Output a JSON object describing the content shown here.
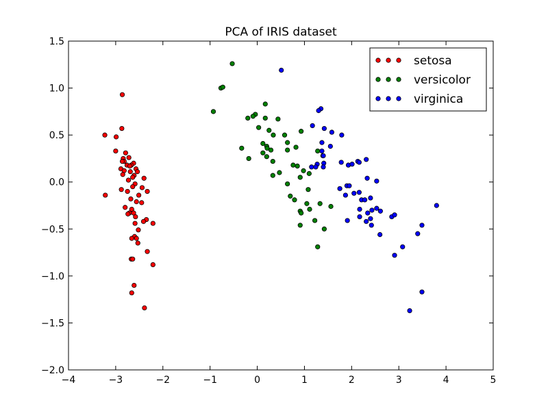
{
  "chart_data": {
    "type": "scatter",
    "title": "PCA of IRIS dataset",
    "xlabel": "",
    "ylabel": "",
    "xlim": [
      -4,
      5
    ],
    "ylim": [
      -2.0,
      1.5
    ],
    "xticks": [
      -4,
      -3,
      -2,
      -1,
      0,
      1,
      2,
      3,
      4,
      5
    ],
    "xtick_labels": [
      "−4",
      "−3",
      "−2",
      "−1",
      "0",
      "1",
      "2",
      "3",
      "4",
      "5"
    ],
    "yticks": [
      -2.0,
      -1.5,
      -1.0,
      -0.5,
      0.0,
      0.5,
      1.0,
      1.5
    ],
    "ytick_labels": [
      "−2.0",
      "−1.5",
      "−1.0",
      "−0.5",
      "0.0",
      "0.5",
      "1.0",
      "1.5"
    ],
    "grid": false,
    "legend_position": "top-right",
    "series": [
      {
        "name": "setosa",
        "color": "#ff0000",
        "points": [
          [
            -2.86,
            0.93
          ],
          [
            -3.23,
            0.5
          ],
          [
            -2.87,
            0.57
          ],
          [
            -2.99,
            0.48
          ],
          [
            -2.79,
            0.31
          ],
          [
            -3.0,
            0.33
          ],
          [
            -2.84,
            0.25
          ],
          [
            -2.72,
            0.26
          ],
          [
            -2.82,
            0.22
          ],
          [
            -2.86,
            0.22
          ],
          [
            -2.76,
            0.18
          ],
          [
            -2.62,
            0.2
          ],
          [
            -2.67,
            0.18
          ],
          [
            -2.7,
            0.17
          ],
          [
            -2.57,
            0.14
          ],
          [
            -2.89,
            0.14
          ],
          [
            -2.82,
            0.12
          ],
          [
            -2.69,
            0.11
          ],
          [
            -2.54,
            0.11
          ],
          [
            -2.85,
            0.08
          ],
          [
            -2.61,
            0.07
          ],
          [
            -2.64,
            0.05
          ],
          [
            -2.4,
            0.04
          ],
          [
            -2.73,
            0.02
          ],
          [
            -2.59,
            -0.02
          ],
          [
            -2.64,
            -0.05
          ],
          [
            -2.44,
            -0.06
          ],
          [
            -2.88,
            -0.08
          ],
          [
            -2.75,
            -0.1
          ],
          [
            -2.33,
            -0.1
          ],
          [
            -3.22,
            -0.14
          ],
          [
            -2.51,
            -0.14
          ],
          [
            -2.68,
            -0.18
          ],
          [
            -2.56,
            -0.21
          ],
          [
            -2.45,
            -0.22
          ],
          [
            -2.8,
            -0.27
          ],
          [
            -2.66,
            -0.29
          ],
          [
            -2.71,
            -0.33
          ],
          [
            -2.62,
            -0.33
          ],
          [
            -2.74,
            -0.34
          ],
          [
            -2.58,
            -0.37
          ],
          [
            -2.35,
            -0.4
          ],
          [
            -2.41,
            -0.42
          ],
          [
            -2.59,
            -0.44
          ],
          [
            -2.21,
            -0.44
          ],
          [
            -2.52,
            -0.51
          ],
          [
            -2.6,
            -0.58
          ],
          [
            -2.56,
            -0.6
          ],
          [
            -2.66,
            -0.6
          ],
          [
            -2.53,
            -0.65
          ],
          [
            -2.33,
            -0.74
          ],
          [
            -2.67,
            -0.82
          ],
          [
            -2.64,
            -0.82
          ],
          [
            -2.21,
            -0.88
          ],
          [
            -2.61,
            -1.1
          ],
          [
            -2.66,
            -1.18
          ],
          [
            -2.39,
            -1.34
          ]
        ]
      },
      {
        "name": "versicolor",
        "color": "#008000",
        "points": [
          [
            -0.53,
            1.26
          ],
          [
            -0.77,
            1.0
          ],
          [
            -0.73,
            1.01
          ],
          [
            -0.93,
            0.75
          ],
          [
            0.17,
            0.83
          ],
          [
            -0.04,
            0.72
          ],
          [
            -0.09,
            0.7
          ],
          [
            -0.2,
            0.68
          ],
          [
            0.17,
            0.68
          ],
          [
            0.44,
            0.67
          ],
          [
            0.03,
            0.58
          ],
          [
            0.25,
            0.55
          ],
          [
            0.93,
            0.54
          ],
          [
            0.34,
            0.5
          ],
          [
            0.58,
            0.5
          ],
          [
            0.64,
            0.42
          ],
          [
            0.12,
            0.41
          ],
          [
            0.2,
            0.38
          ],
          [
            0.82,
            0.37
          ],
          [
            0.21,
            0.36
          ],
          [
            -0.33,
            0.36
          ],
          [
            0.29,
            0.34
          ],
          [
            0.64,
            0.34
          ],
          [
            1.28,
            0.33
          ],
          [
            0.12,
            0.31
          ],
          [
            0.2,
            0.27
          ],
          [
            0.33,
            0.22
          ],
          [
            -0.18,
            0.25
          ],
          [
            1.39,
            0.28
          ],
          [
            0.76,
            0.18
          ],
          [
            0.85,
            0.17
          ],
          [
            0.98,
            0.12
          ],
          [
            1.1,
            0.09
          ],
          [
            0.47,
            0.1
          ],
          [
            0.33,
            0.07
          ],
          [
            0.91,
            0.05
          ],
          [
            0.64,
            -0.02
          ],
          [
            1.08,
            -0.08
          ],
          [
            0.7,
            -0.15
          ],
          [
            0.79,
            -0.19
          ],
          [
            1.33,
            -0.23
          ],
          [
            1.05,
            -0.23
          ],
          [
            0.91,
            -0.31
          ],
          [
            1.11,
            -0.29
          ],
          [
            1.56,
            -0.26
          ],
          [
            0.93,
            -0.33
          ],
          [
            1.22,
            -0.41
          ],
          [
            0.91,
            -0.46
          ],
          [
            1.42,
            -0.5
          ],
          [
            1.28,
            -0.69
          ]
        ]
      },
      {
        "name": "virginica",
        "color": "#0000ff",
        "points": [
          [
            0.51,
            1.19
          ],
          [
            1.35,
            0.78
          ],
          [
            1.3,
            0.76
          ],
          [
            1.17,
            0.6
          ],
          [
            1.42,
            0.57
          ],
          [
            1.58,
            0.53
          ],
          [
            1.79,
            0.5
          ],
          [
            1.37,
            0.42
          ],
          [
            1.55,
            0.38
          ],
          [
            1.37,
            0.33
          ],
          [
            1.4,
            0.28
          ],
          [
            2.31,
            0.24
          ],
          [
            2.13,
            0.22
          ],
          [
            1.78,
            0.21
          ],
          [
            2.16,
            0.21
          ],
          [
            1.93,
            0.18
          ],
          [
            1.41,
            0.2
          ],
          [
            1.27,
            0.19
          ],
          [
            2.01,
            0.19
          ],
          [
            1.15,
            0.16
          ],
          [
            1.4,
            0.16
          ],
          [
            1.24,
            0.16
          ],
          [
            2.33,
            0.04
          ],
          [
            2.53,
            0.01
          ],
          [
            1.9,
            -0.04
          ],
          [
            1.95,
            -0.04
          ],
          [
            1.75,
            -0.07
          ],
          [
            2.16,
            -0.11
          ],
          [
            2.05,
            -0.12
          ],
          [
            1.87,
            -0.14
          ],
          [
            2.4,
            -0.17
          ],
          [
            2.21,
            -0.19
          ],
          [
            2.28,
            -0.19
          ],
          [
            2.53,
            -0.28
          ],
          [
            2.17,
            -0.29
          ],
          [
            2.43,
            -0.3
          ],
          [
            2.61,
            -0.31
          ],
          [
            2.34,
            -0.33
          ],
          [
            2.17,
            -0.37
          ],
          [
            2.85,
            -0.37
          ],
          [
            3.8,
            -0.25
          ],
          [
            2.91,
            -0.35
          ],
          [
            2.4,
            -0.39
          ],
          [
            1.91,
            -0.41
          ],
          [
            2.31,
            -0.42
          ],
          [
            2.42,
            -0.46
          ],
          [
            3.49,
            -0.46
          ],
          [
            2.6,
            -0.56
          ],
          [
            3.4,
            -0.55
          ],
          [
            3.08,
            -0.69
          ],
          [
            2.91,
            -0.78
          ],
          [
            3.49,
            -1.17
          ],
          [
            3.23,
            -1.37
          ]
        ]
      }
    ]
  }
}
